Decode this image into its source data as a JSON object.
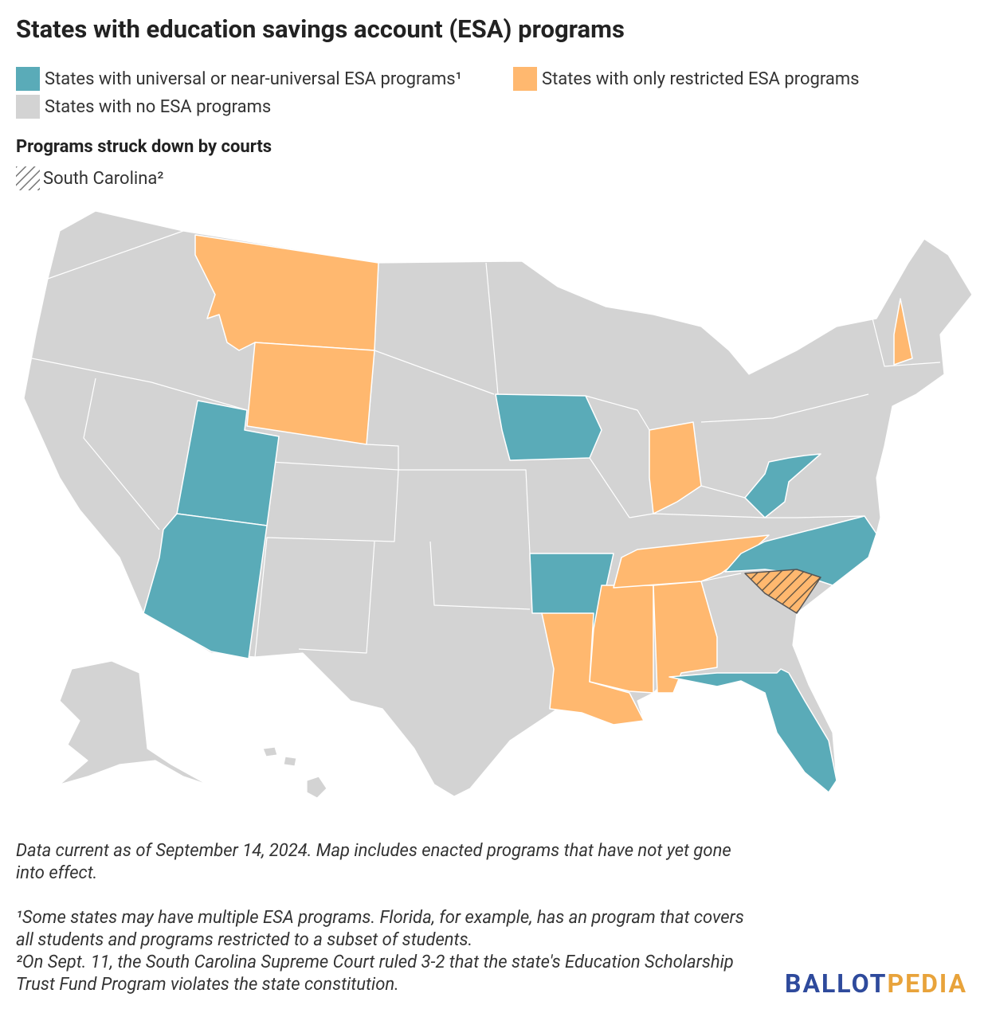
{
  "title": "States with education savings account (ESA) programs",
  "legend": [
    {
      "label": "States with universal or near-universal ESA programs¹",
      "color": "#5aabb8"
    },
    {
      "label": "States with only restricted ESA programs",
      "color": "#ffb86f"
    },
    {
      "label": "States with no ESA programs",
      "color": "#d3d3d3"
    }
  ],
  "struck_down": {
    "heading": "Programs struck down by courts",
    "label": "South Carolina²"
  },
  "notes": [
    "Data current as of September 14, 2024. Map includes enacted programs that have not yet gone into effect.",
    "¹Some states may have multiple ESA programs. Florida, for example, has an program that covers all students and programs restricted to a subset of students.",
    "²On Sept. 11, the South Carolina Supreme Court ruled 3-2 that the state's Education Scholarship Trust Fund Program violates the state constitution."
  ],
  "logo": {
    "first": "BALLOT",
    "second": "PEDIA"
  }
}
